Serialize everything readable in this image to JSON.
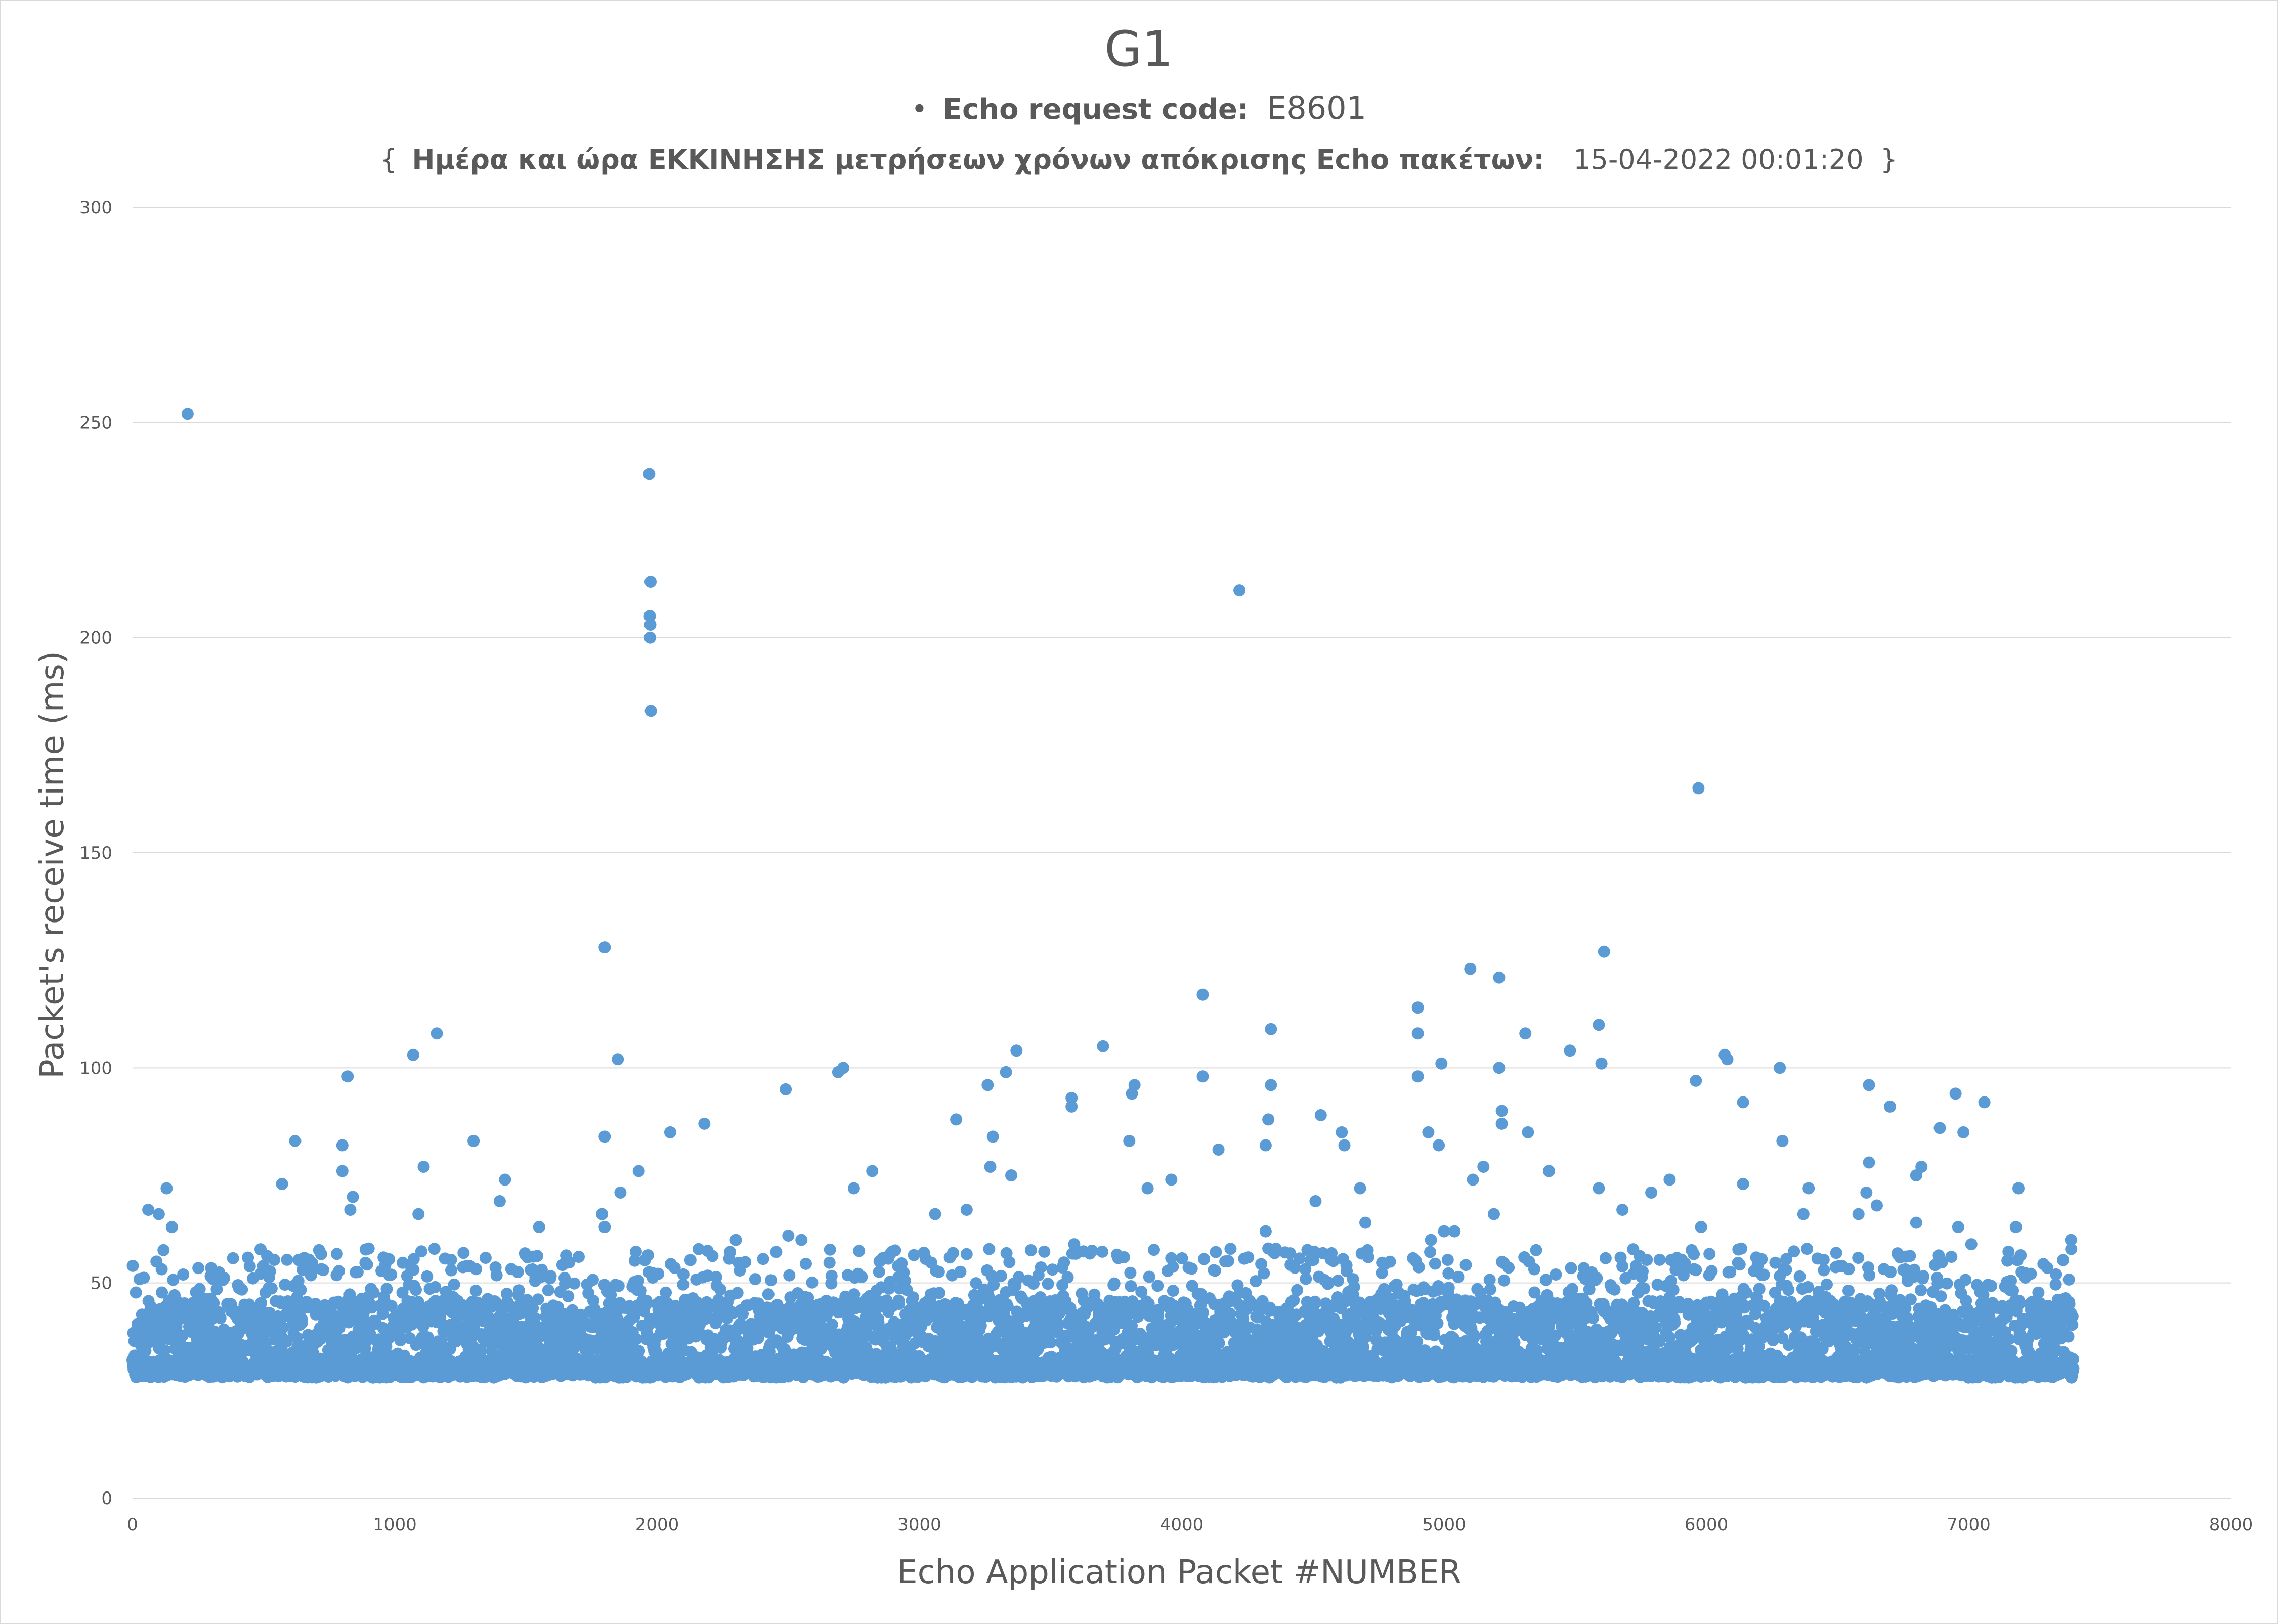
{
  "chart_data": {
    "type": "scatter",
    "title": "G1",
    "subtitle_line1": {
      "bullet": "•",
      "label": "Echo request code:",
      "value": "E8601"
    },
    "subtitle_line2": {
      "open": "{",
      "label": "Ημέρα και ώρα ΕΚΚΙΝΗΣΗΣ μετρήσεων χρόνων απόκρισης Echo πακέτων:",
      "value": "15-04-2022 00:01:20",
      "close": "}"
    },
    "xlabel": "Echo Application Packet  #NUMBER",
    "ylabel": "Packet's receive time (ms)",
    "xlim": [
      0,
      8000
    ],
    "ylim": [
      0,
      300
    ],
    "x_ticks": [
      0,
      1000,
      2000,
      3000,
      4000,
      5000,
      6000,
      7000,
      8000
    ],
    "y_ticks": [
      0,
      50,
      100,
      150,
      200,
      250,
      300
    ],
    "grid": "horizontal",
    "point_color": "#5b9bd5",
    "grid_color": "#d9d9d9",
    "text_color": "#595959",
    "legend": "none",
    "series": [
      {
        "n_points": 7400,
        "typical_range": [
          28,
          46
        ],
        "outliers": [
          [
            210,
            252
          ],
          [
            1970,
            238
          ],
          [
            1975,
            213
          ],
          [
            1972,
            205
          ],
          [
            1974,
            203
          ],
          [
            1973,
            200
          ],
          [
            1976,
            183
          ],
          [
            4220,
            211
          ],
          [
            5970,
            165
          ],
          [
            1800,
            128
          ],
          [
            5610,
            127
          ],
          [
            5100,
            123
          ],
          [
            5210,
            121
          ],
          [
            4080,
            117
          ],
          [
            4900,
            114
          ],
          [
            5590,
            110
          ],
          [
            1160,
            108
          ],
          [
            4340,
            109
          ],
          [
            4900,
            108
          ],
          [
            5310,
            108
          ],
          [
            3700,
            105
          ],
          [
            5480,
            104
          ],
          [
            1070,
            103
          ],
          [
            3370,
            104
          ],
          [
            6070,
            103
          ],
          [
            1850,
            102
          ],
          [
            4990,
            101
          ],
          [
            5210,
            100
          ],
          [
            5600,
            101
          ],
          [
            6080,
            102
          ],
          [
            2690,
            99
          ],
          [
            2710,
            100
          ],
          [
            3330,
            99
          ],
          [
            4080,
            98
          ],
          [
            5960,
            97
          ],
          [
            6280,
            100
          ],
          [
            820,
            98
          ],
          [
            4900,
            98
          ],
          [
            2490,
            95
          ],
          [
            3260,
            96
          ],
          [
            3820,
            96
          ],
          [
            3810,
            94
          ],
          [
            4340,
            96
          ],
          [
            6620,
            96
          ],
          [
            6950,
            94
          ],
          [
            3580,
            93
          ],
          [
            3580,
            91
          ],
          [
            6140,
            92
          ],
          [
            6700,
            91
          ],
          [
            7060,
            92
          ],
          [
            5220,
            90
          ],
          [
            4530,
            89
          ],
          [
            2180,
            87
          ],
          [
            3140,
            88
          ],
          [
            4330,
            88
          ],
          [
            5220,
            87
          ],
          [
            6890,
            86
          ],
          [
            2050,
            85
          ],
          [
            4940,
            85
          ],
          [
            4610,
            85
          ],
          [
            5320,
            85
          ],
          [
            6980,
            85
          ],
          [
            620,
            83
          ],
          [
            1300,
            83
          ],
          [
            3280,
            84
          ],
          [
            3800,
            83
          ],
          [
            6290,
            83
          ],
          [
            800,
            82
          ],
          [
            1800,
            84
          ],
          [
            4620,
            82
          ],
          [
            4980,
            82
          ],
          [
            4320,
            82
          ],
          [
            4140,
            81
          ],
          [
            1110,
            77
          ],
          [
            3270,
            77
          ],
          [
            5150,
            77
          ],
          [
            6620,
            78
          ],
          [
            6820,
            77
          ],
          [
            800,
            76
          ],
          [
            1930,
            76
          ],
          [
            2820,
            76
          ],
          [
            3350,
            75
          ],
          [
            5400,
            76
          ],
          [
            6800,
            75
          ],
          [
            1420,
            74
          ],
          [
            570,
            73
          ],
          [
            3960,
            74
          ],
          [
            5110,
            74
          ],
          [
            5860,
            74
          ],
          [
            6140,
            73
          ],
          [
            130,
            72
          ],
          [
            2750,
            72
          ],
          [
            3870,
            72
          ],
          [
            4680,
            72
          ],
          [
            5590,
            72
          ],
          [
            6390,
            72
          ],
          [
            7190,
            72
          ],
          [
            840,
            70
          ],
          [
            1860,
            71
          ],
          [
            1400,
            69
          ],
          [
            4510,
            69
          ],
          [
            5790,
            71
          ],
          [
            6610,
            71
          ],
          [
            60,
            67
          ],
          [
            100,
            66
          ],
          [
            830,
            67
          ],
          [
            1090,
            66
          ],
          [
            1790,
            66
          ],
          [
            3060,
            66
          ],
          [
            3180,
            67
          ],
          [
            5190,
            66
          ],
          [
            5680,
            67
          ],
          [
            6370,
            66
          ],
          [
            6580,
            66
          ],
          [
            6650,
            68
          ],
          [
            150,
            63
          ],
          [
            1550,
            63
          ],
          [
            1800,
            63
          ],
          [
            4320,
            62
          ],
          [
            4700,
            64
          ],
          [
            5000,
            62
          ],
          [
            5980,
            63
          ],
          [
            6800,
            64
          ],
          [
            6960,
            63
          ],
          [
            7180,
            63
          ],
          [
            2300,
            60
          ],
          [
            2500,
            61
          ],
          [
            2550,
            60
          ],
          [
            3590,
            59
          ],
          [
            4330,
            58
          ],
          [
            4950,
            60
          ],
          [
            5040,
            62
          ],
          [
            7010,
            59
          ],
          [
            7390,
            60
          ]
        ]
      }
    ]
  }
}
